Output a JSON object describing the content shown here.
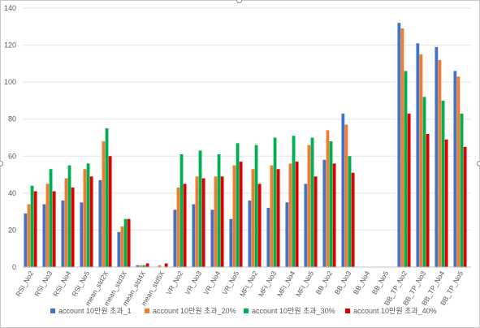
{
  "chart_data": {
    "type": "bar",
    "title": "",
    "xlabel": "",
    "ylabel": "",
    "ylim": [
      0,
      140
    ],
    "yticks": [
      0,
      20,
      40,
      60,
      80,
      100,
      120,
      140
    ],
    "grid": true,
    "legend_position": "bottom",
    "categories": [
      "RSI_No2",
      "RSI_No3",
      "RSI_No4",
      "RSI_No5",
      "mean_std2X",
      "mean_std3X",
      "mean_std4X",
      "mean_std5X",
      "VR_No2",
      "VR_No3",
      "VR_No4",
      "VR_No5",
      "MFI_No2",
      "MFI_No3",
      "MFI_No4",
      "MFI_No5",
      "BB_No2",
      "BB_No3",
      "BB_No4",
      "BB_No5",
      "BB_TP_No2",
      "BB_TP_No3",
      "BB_TP_No4",
      "BB_TP_No5"
    ],
    "series": [
      {
        "name": "account 10만원 초과_1",
        "color": "#4472C4",
        "values": [
          29,
          34,
          36,
          35,
          47,
          19,
          1,
          0,
          31,
          34,
          31,
          26,
          36,
          32,
          35,
          45,
          58,
          83,
          0,
          0,
          132,
          121,
          119,
          106
        ]
      },
      {
        "name": "account 10만원 초과_20%",
        "color": "#ED7D31",
        "values": [
          34,
          45,
          48,
          53,
          68,
          22,
          1,
          1,
          43,
          49,
          49,
          55,
          53,
          55,
          56,
          66,
          74,
          77,
          0,
          0,
          129,
          115,
          112,
          103
        ]
      },
      {
        "name": "account 10만원 초과_30%",
        "color": "#00B050",
        "values": [
          44,
          53,
          55,
          56,
          75,
          26,
          1,
          0,
          61,
          63,
          61,
          67,
          66,
          70,
          71,
          70,
          68,
          60,
          0,
          0,
          106,
          92,
          90,
          83
        ]
      },
      {
        "name": "account 10만원 초과_40%",
        "color": "#E00000",
        "values": [
          41,
          41,
          43,
          49,
          60,
          26,
          2,
          2,
          45,
          48,
          49,
          57,
          45,
          53,
          57,
          49,
          56,
          51,
          0,
          0,
          83,
          72,
          69,
          65
        ]
      }
    ]
  }
}
